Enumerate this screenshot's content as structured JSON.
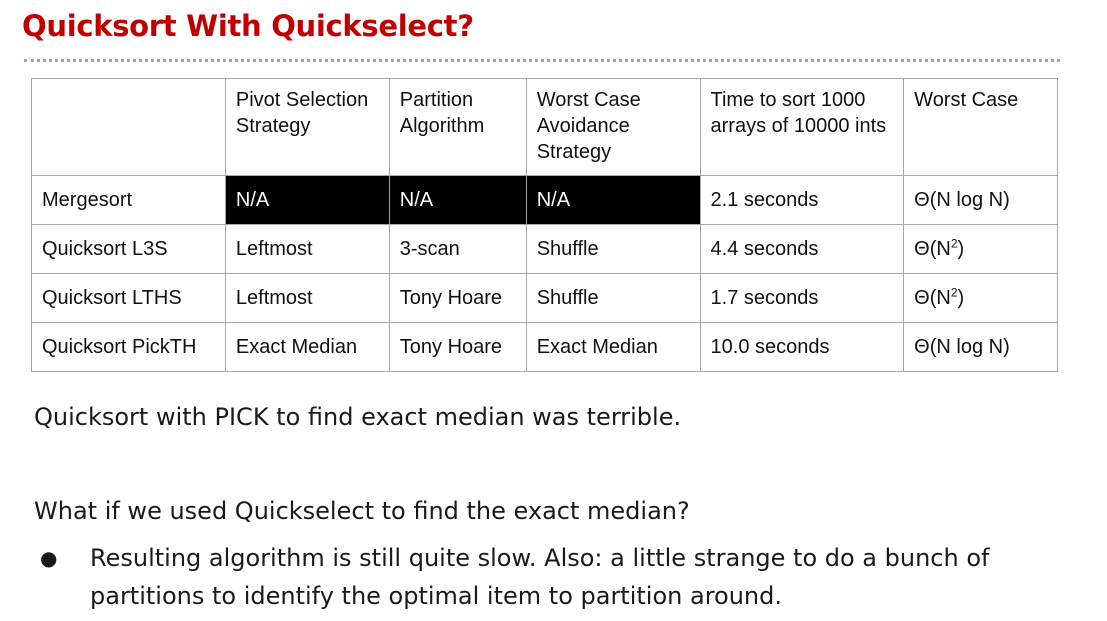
{
  "title": "Quicksort With Quickselect?",
  "table": {
    "headers": [
      "",
      "Pivot Selection Strategy",
      "Partition Algorithm",
      "Worst Case Avoidance Strategy",
      "Time to sort 1000 arrays of 10000 ints",
      "Worst Case"
    ],
    "rows": [
      {
        "name": "Mergesort",
        "pivot": "N/A",
        "partition": "N/A",
        "avoidance": "N/A",
        "time": "2.1 seconds",
        "worst_base": "Θ(N log N)",
        "worst_sup": "",
        "worst_tail": ""
      },
      {
        "name": "Quicksort L3S",
        "pivot": "Leftmost",
        "partition": "3-scan",
        "avoidance": "Shuffle",
        "time": "4.4 seconds",
        "worst_base": "Θ(N",
        "worst_sup": "2",
        "worst_tail": ")"
      },
      {
        "name": "Quicksort LTHS",
        "pivot": "Leftmost",
        "partition": "Tony Hoare",
        "avoidance": "Shuffle",
        "time": "1.7 seconds",
        "worst_base": "Θ(N",
        "worst_sup": "2",
        "worst_tail": ")"
      },
      {
        "name": "Quicksort PickTH",
        "pivot": "Exact Median",
        "partition": "Tony Hoare",
        "avoidance": "Exact Median",
        "time": "10.0 seconds",
        "worst_base": "Θ(N log N)",
        "worst_sup": "",
        "worst_tail": ""
      }
    ]
  },
  "paragraph1": "Quicksort with PICK to find exact median was terrible.",
  "paragraph2": "What if we used Quickselect to find the exact median?",
  "bullets": [
    {
      "marker": "●",
      "text": "Resulting algorithm is still quite slow. Also: a little strange to do a bunch of partitions to identify the optimal item to partition around."
    }
  ]
}
